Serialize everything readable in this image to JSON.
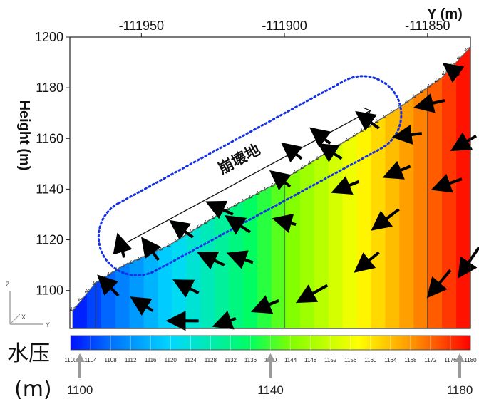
{
  "chart_data": {
    "type": "heatmap",
    "title": "",
    "xlabel": "Y (m)",
    "ylabel": "Height (m)",
    "xlim": [
      -111975,
      -111835
    ],
    "ylim": [
      1085,
      1200
    ],
    "x_ticks": [
      -111950,
      -111900,
      -111850
    ],
    "y_ticks": [
      1100,
      1120,
      1140,
      1160,
      1180,
      1200
    ],
    "surface_profile": [
      {
        "x": -111974,
        "y": 1092
      },
      {
        "x": -111966,
        "y": 1103
      },
      {
        "x": -111956,
        "y": 1110
      },
      {
        "x": -111940,
        "y": 1118
      },
      {
        "x": -111920,
        "y": 1132
      },
      {
        "x": -111900,
        "y": 1144
      },
      {
        "x": -111880,
        "y": 1158
      },
      {
        "x": -111860,
        "y": 1172
      },
      {
        "x": -111845,
        "y": 1184
      },
      {
        "x": -111835,
        "y": 1196
      }
    ],
    "colorbar": {
      "label": "水压",
      "unit": "(m)",
      "min": 1100,
      "max": 1180,
      "ticks": [
        1100,
        1104,
        1108,
        1112,
        1116,
        1120,
        1124,
        1128,
        1132,
        1136,
        1140,
        1144,
        1148,
        1152,
        1156,
        1160,
        1164,
        1168,
        1172,
        1176,
        1180
      ],
      "callouts": [
        1100,
        1140,
        1180
      ]
    },
    "flow_arrows": [
      {
        "x": -111956,
        "y": 1113,
        "dx": -1.5,
        "dy": 6.0
      },
      {
        "x": -111958,
        "y": 1098,
        "dx": -5.0,
        "dy": 5.5
      },
      {
        "x": -111946,
        "y": 1092,
        "dx": -5.0,
        "dy": 3.5
      },
      {
        "x": -111944,
        "y": 1112,
        "dx": -4.0,
        "dy": 6.0
      },
      {
        "x": -111932,
        "y": 1121,
        "dx": -5.5,
        "dy": 4.5
      },
      {
        "x": -111930,
        "y": 1099,
        "dx": -6.0,
        "dy": 3.5
      },
      {
        "x": -111921,
        "y": 1110,
        "dx": -6.5,
        "dy": 3.5
      },
      {
        "x": -111912,
        "y": 1123,
        "dx": -6.0,
        "dy": 4.5
      },
      {
        "x": -111918,
        "y": 1130,
        "dx": -6.5,
        "dy": 3.5
      },
      {
        "x": -111911,
        "y": 1111,
        "dx": -6.0,
        "dy": 2.5
      },
      {
        "x": -111896,
        "y": 1126,
        "dx": -5.0,
        "dy": 1.5
      },
      {
        "x": -111898,
        "y": 1141,
        "dx": -4.5,
        "dy": 4.0
      },
      {
        "x": -111880,
        "y": 1152,
        "dx": -5.5,
        "dy": 4.0
      },
      {
        "x": -111894,
        "y": 1152,
        "dx": -4.5,
        "dy": 4.0
      },
      {
        "x": -111867,
        "y": 1164,
        "dx": -5.5,
        "dy": 4.5
      },
      {
        "x": -111856,
        "y": 1149,
        "dx": -6.5,
        "dy": -3.0
      },
      {
        "x": -111867,
        "y": 1115,
        "dx": -6.0,
        "dy": -5.5
      },
      {
        "x": -111860,
        "y": 1132,
        "dx": -7.0,
        "dy": -6.0
      },
      {
        "x": -111874,
        "y": 1143,
        "dx": -6.5,
        "dy": -3.0
      },
      {
        "x": -111844,
        "y": 1175,
        "dx": -7.5,
        "dy": -2.0
      },
      {
        "x": -111833,
        "y": 1161,
        "dx": -6.0,
        "dy": -4.0
      },
      {
        "x": -111852,
        "y": 1162,
        "dx": -7.0,
        "dy": -1.0
      },
      {
        "x": -111838,
        "y": 1144,
        "dx": -7.5,
        "dy": -3.0
      },
      {
        "x": -111842,
        "y": 1108,
        "dx": -6.0,
        "dy": -8.0
      },
      {
        "x": -111832,
        "y": 1117,
        "dx": -5.5,
        "dy": -9.0
      },
      {
        "x": -111885,
        "y": 1102,
        "dx": -8.0,
        "dy": -5.0
      },
      {
        "x": -111902,
        "y": 1096,
        "dx": -6.5,
        "dy": -3.0
      },
      {
        "x": -111917,
        "y": 1089,
        "dx": -5.0,
        "dy": -2.0
      },
      {
        "x": -111930,
        "y": 1088,
        "dx": -8.0,
        "dy": 0.0
      },
      {
        "x": -111884,
        "y": 1158,
        "dx": -4.5,
        "dy": 4.0
      },
      {
        "x": -111839,
        "y": 1185,
        "dx": -3.0,
        "dy": 2.5
      }
    ],
    "annotation": {
      "text": "崩壊地",
      "shape": "dotted outline"
    },
    "axes_triad": {
      "labels": [
        "Z",
        "X",
        "Y"
      ]
    }
  }
}
